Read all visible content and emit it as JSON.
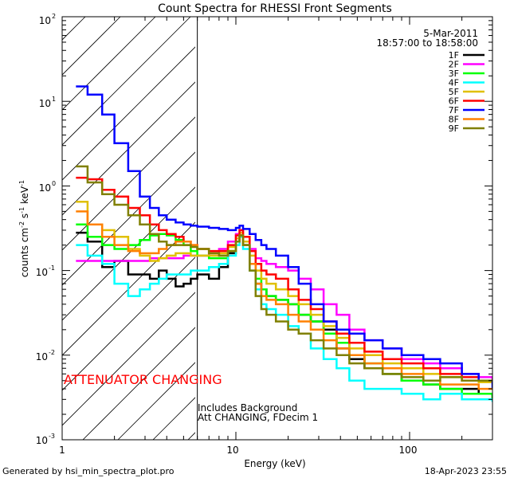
{
  "chart_data": {
    "type": "line",
    "title": "Count Spectra for RHESSI Front Segments",
    "xlabel": "Energy (keV)",
    "ylabel_main": "counts cm",
    "ylabel_sup1": "-2",
    "ylabel_mid1": " s",
    "ylabel_sup2": "-1",
    "ylabel_mid2": " keV",
    "ylabel_sup3": "-1",
    "x_scale": "log",
    "y_scale": "log",
    "xlim": [
      1,
      300
    ],
    "ylim": [
      0.001,
      100
    ],
    "x_ticks": [
      {
        "value": 1,
        "label": "1"
      },
      {
        "value": 10,
        "label": "10"
      },
      {
        "value": 100,
        "label": "100"
      }
    ],
    "y_ticks": [
      {
        "value": 100,
        "base": "10",
        "exp": "2"
      },
      {
        "value": 10,
        "base": "10",
        "exp": "1"
      },
      {
        "value": 1,
        "base": "10",
        "exp": "0"
      },
      {
        "value": 0.1,
        "base": "10",
        "exp": "-1"
      },
      {
        "value": 0.01,
        "base": "10",
        "exp": "-2"
      },
      {
        "value": 0.001,
        "base": "10",
        "exp": "-3"
      }
    ],
    "date": "5-Mar-2011",
    "time_range": "18:57:00 to 18:58:00",
    "hatched_region_end_kev": 6,
    "attenuator_text": "ATTENUATOR CHANGING",
    "note_line1": "Includes Background",
    "note_line2": "Att CHANGING, FDecim 1",
    "footer_left": "Generated by hsi_min_spectra_plot.pro",
    "footer_right": "18-Apr-2023 23:55",
    "series": [
      {
        "name": "1F",
        "color": "#000000",
        "energy": [
          1.2,
          1.4,
          1.7,
          2.0,
          2.4,
          2.8,
          3.2,
          3.6,
          4.0,
          4.5,
          5,
          5.5,
          6,
          7,
          8,
          9,
          10,
          10.5,
          11,
          12,
          13,
          14,
          15,
          17,
          20,
          23,
          27,
          32,
          38,
          45,
          55,
          70,
          90,
          120,
          150,
          200,
          250,
          300
        ],
        "counts": [
          0.28,
          0.22,
          0.11,
          0.13,
          0.09,
          0.09,
          0.08,
          0.1,
          0.08,
          0.065,
          0.07,
          0.08,
          0.09,
          0.08,
          0.11,
          0.16,
          0.22,
          0.26,
          0.2,
          0.12,
          0.07,
          0.06,
          0.05,
          0.045,
          0.04,
          0.03,
          0.025,
          0.02,
          0.012,
          0.009,
          0.007,
          0.006,
          0.005,
          0.0045,
          0.004,
          0.004,
          0.0035,
          0.003
        ]
      },
      {
        "name": "2F",
        "color": "#ff00ff",
        "energy": [
          1.2,
          1.4,
          1.7,
          2.0,
          2.4,
          2.8,
          3.2,
          3.6,
          4.0,
          4.5,
          5,
          5.5,
          6,
          7,
          8,
          9,
          10,
          10.5,
          11,
          12,
          13,
          14,
          15,
          17,
          20,
          23,
          27,
          32,
          38,
          45,
          55,
          70,
          90,
          120,
          150,
          200,
          250,
          300
        ],
        "counts": [
          0.13,
          0.13,
          0.13,
          0.13,
          0.13,
          0.13,
          0.14,
          0.14,
          0.14,
          0.14,
          0.15,
          0.15,
          0.15,
          0.16,
          0.18,
          0.22,
          0.27,
          0.3,
          0.25,
          0.18,
          0.14,
          0.13,
          0.12,
          0.11,
          0.1,
          0.08,
          0.06,
          0.04,
          0.03,
          0.02,
          0.015,
          0.012,
          0.009,
          0.008,
          0.007,
          0.006,
          0.0055,
          0.005
        ]
      },
      {
        "name": "3F",
        "color": "#00ff00",
        "energy": [
          1.2,
          1.4,
          1.7,
          2.0,
          2.4,
          2.8,
          3.2,
          3.6,
          4.0,
          4.5,
          5,
          5.5,
          6,
          7,
          8,
          9,
          10,
          10.5,
          11,
          12,
          13,
          14,
          15,
          17,
          20,
          23,
          27,
          32,
          38,
          45,
          55,
          70,
          90,
          120,
          150,
          200,
          250,
          300
        ],
        "counts": [
          0.35,
          0.25,
          0.2,
          0.18,
          0.2,
          0.23,
          0.26,
          0.27,
          0.26,
          0.23,
          0.2,
          0.17,
          0.15,
          0.14,
          0.14,
          0.17,
          0.22,
          0.26,
          0.2,
          0.12,
          0.08,
          0.06,
          0.05,
          0.045,
          0.04,
          0.03,
          0.025,
          0.018,
          0.014,
          0.01,
          0.008,
          0.006,
          0.005,
          0.0045,
          0.004,
          0.0035,
          0.0035,
          0.003
        ]
      },
      {
        "name": "4F",
        "color": "#00ffff",
        "energy": [
          1.2,
          1.4,
          1.7,
          2.0,
          2.4,
          2.8,
          3.2,
          3.6,
          4.0,
          4.5,
          5,
          5.5,
          6,
          7,
          8,
          9,
          10,
          10.5,
          11,
          12,
          13,
          14,
          15,
          17,
          20,
          23,
          27,
          32,
          38,
          45,
          55,
          70,
          90,
          120,
          150,
          200,
          250,
          300
        ],
        "counts": [
          0.2,
          0.15,
          0.12,
          0.07,
          0.05,
          0.06,
          0.07,
          0.08,
          0.09,
          0.09,
          0.09,
          0.1,
          0.1,
          0.11,
          0.12,
          0.15,
          0.2,
          0.25,
          0.18,
          0.1,
          0.06,
          0.04,
          0.035,
          0.03,
          0.022,
          0.018,
          0.012,
          0.009,
          0.007,
          0.005,
          0.004,
          0.004,
          0.0035,
          0.003,
          0.0035,
          0.003,
          0.003,
          0.0028
        ]
      },
      {
        "name": "5F",
        "color": "#e0c000",
        "energy": [
          1.2,
          1.4,
          1.7,
          2.0,
          2.4,
          2.8,
          3.2,
          3.6,
          4.0,
          4.5,
          5,
          5.5,
          6,
          7,
          8,
          9,
          10,
          10.5,
          11,
          12,
          13,
          14,
          15,
          17,
          20,
          23,
          27,
          32,
          38,
          45,
          55,
          70,
          90,
          120,
          150,
          200,
          250,
          300
        ],
        "counts": [
          0.65,
          0.35,
          0.3,
          0.25,
          0.18,
          0.15,
          0.13,
          0.14,
          0.15,
          0.16,
          0.16,
          0.15,
          0.15,
          0.15,
          0.16,
          0.19,
          0.24,
          0.28,
          0.22,
          0.15,
          0.1,
          0.08,
          0.07,
          0.06,
          0.05,
          0.04,
          0.03,
          0.022,
          0.016,
          0.012,
          0.01,
          0.008,
          0.007,
          0.006,
          0.0055,
          0.005,
          0.0048,
          0.0045
        ]
      },
      {
        "name": "6F",
        "color": "#ff0000",
        "energy": [
          1.2,
          1.4,
          1.7,
          2.0,
          2.4,
          2.8,
          3.2,
          3.6,
          4.0,
          4.5,
          5,
          5.5,
          6,
          7,
          8,
          9,
          10,
          10.5,
          11,
          12,
          13,
          14,
          15,
          17,
          20,
          23,
          27,
          32,
          38,
          45,
          55,
          70,
          90,
          120,
          150,
          200,
          250,
          300
        ],
        "counts": [
          1.25,
          1.2,
          0.9,
          0.75,
          0.55,
          0.45,
          0.35,
          0.3,
          0.27,
          0.25,
          0.22,
          0.2,
          0.18,
          0.17,
          0.17,
          0.2,
          0.26,
          0.3,
          0.25,
          0.17,
          0.12,
          0.1,
          0.09,
          0.08,
          0.06,
          0.045,
          0.035,
          0.025,
          0.018,
          0.014,
          0.011,
          0.009,
          0.008,
          0.007,
          0.006,
          0.0055,
          0.005,
          0.0048
        ]
      },
      {
        "name": "7F",
        "color": "#0000ff",
        "energy": [
          1.2,
          1.4,
          1.7,
          2.0,
          2.4,
          2.8,
          3.2,
          3.6,
          4.0,
          4.5,
          5,
          5.5,
          6,
          7,
          8,
          9,
          10,
          10.5,
          11,
          12,
          13,
          14,
          15,
          17,
          20,
          23,
          27,
          32,
          38,
          45,
          55,
          70,
          90,
          120,
          150,
          200,
          250,
          300
        ],
        "counts": [
          15,
          12,
          7,
          3.2,
          1.5,
          0.75,
          0.55,
          0.45,
          0.4,
          0.37,
          0.35,
          0.34,
          0.33,
          0.32,
          0.31,
          0.3,
          0.32,
          0.34,
          0.31,
          0.27,
          0.23,
          0.2,
          0.18,
          0.15,
          0.11,
          0.07,
          0.04,
          0.025,
          0.02,
          0.018,
          0.015,
          0.012,
          0.01,
          0.009,
          0.008,
          0.006,
          0.005,
          0.004
        ]
      },
      {
        "name": "8F",
        "color": "#ff8000",
        "energy": [
          1.2,
          1.4,
          1.7,
          2.0,
          2.4,
          2.8,
          3.2,
          3.6,
          4.0,
          4.5,
          5,
          5.5,
          6,
          7,
          8,
          9,
          10,
          10.5,
          11,
          12,
          13,
          14,
          15,
          17,
          20,
          23,
          27,
          32,
          38,
          45,
          55,
          70,
          90,
          120,
          150,
          200,
          250,
          300
        ],
        "counts": [
          0.5,
          0.35,
          0.25,
          0.2,
          0.17,
          0.16,
          0.16,
          0.18,
          0.2,
          0.22,
          0.22,
          0.2,
          0.18,
          0.16,
          0.15,
          0.17,
          0.22,
          0.26,
          0.2,
          0.12,
          0.07,
          0.05,
          0.045,
          0.04,
          0.03,
          0.025,
          0.02,
          0.015,
          0.012,
          0.01,
          0.008,
          0.007,
          0.006,
          0.005,
          0.0045,
          0.0045,
          0.004,
          0.004
        ]
      },
      {
        "name": "9F",
        "color": "#808000",
        "energy": [
          1.2,
          1.4,
          1.7,
          2.0,
          2.4,
          2.8,
          3.2,
          3.6,
          4.0,
          4.5,
          5,
          5.5,
          6,
          7,
          8,
          9,
          10,
          10.5,
          11,
          12,
          13,
          14,
          15,
          17,
          20,
          23,
          27,
          32,
          38,
          45,
          55,
          70,
          90,
          120,
          150,
          200,
          250,
          300
        ],
        "counts": [
          1.7,
          1.1,
          0.8,
          0.6,
          0.45,
          0.35,
          0.27,
          0.22,
          0.2,
          0.2,
          0.2,
          0.19,
          0.18,
          0.16,
          0.15,
          0.17,
          0.22,
          0.26,
          0.2,
          0.1,
          0.05,
          0.035,
          0.03,
          0.025,
          0.02,
          0.018,
          0.015,
          0.012,
          0.01,
          0.008,
          0.007,
          0.006,
          0.0055,
          0.005,
          0.0055,
          0.005,
          0.005,
          0.005
        ]
      }
    ]
  }
}
